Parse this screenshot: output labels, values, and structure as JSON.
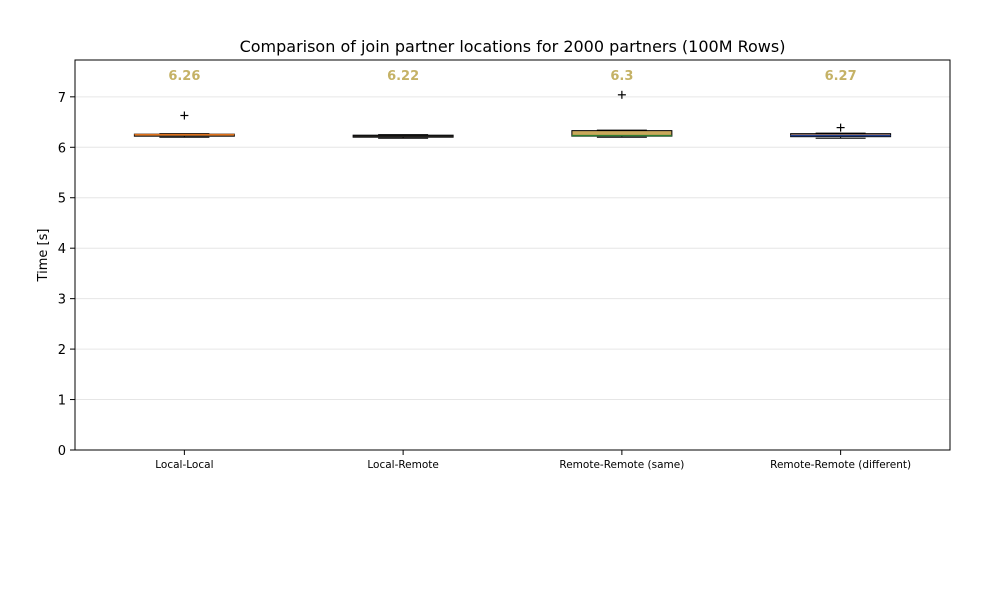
{
  "chart_data": {
    "type": "box",
    "title": "Comparison of join partner locations for 2000 partners (100M Rows)",
    "xlabel": "",
    "ylabel": "Time [s]",
    "ylim": [
      0,
      7.73
    ],
    "yticks": [
      0,
      1,
      2,
      3,
      4,
      5,
      6,
      7
    ],
    "grid": "y",
    "categories": [
      "Local-Local",
      "Local-Remote",
      "Remote-Remote (same)",
      "Remote-Remote (different)"
    ],
    "boxes": [
      {
        "whislo": 6.2,
        "q1": 6.22,
        "med": 6.25,
        "q3": 6.26,
        "whishi": 6.27,
        "fliers": [
          6.63
        ],
        "mean_label": "6.26",
        "face_color": "#d99b5a",
        "median_color": "#e0701a"
      },
      {
        "whislo": 6.18,
        "q1": 6.2,
        "med": 6.22,
        "q3": 6.24,
        "whishi": 6.25,
        "fliers": [],
        "mean_label": "6.22",
        "face_color": "#e09b66",
        "median_color": "#1a1a1a"
      },
      {
        "whislo": 6.2,
        "q1": 6.22,
        "med": 6.23,
        "q3": 6.33,
        "whishi": 6.34,
        "fliers": [
          7.04
        ],
        "mean_label": "6.3",
        "face_color": "#c9a85a",
        "median_color": "#2e7d32"
      },
      {
        "whislo": 6.18,
        "q1": 6.21,
        "med": 6.23,
        "q3": 6.27,
        "whishi": 6.28,
        "fliers": [
          6.39
        ],
        "mean_label": "6.27",
        "face_color": "#b7866a",
        "median_color": "#1f3f8f"
      }
    ],
    "mean_label_color": "#c5b266"
  }
}
